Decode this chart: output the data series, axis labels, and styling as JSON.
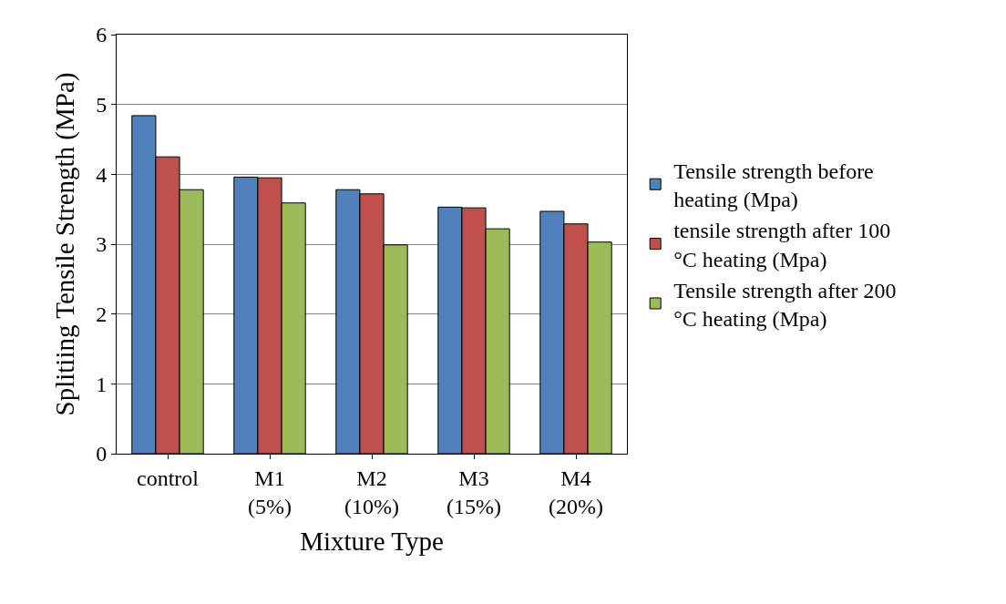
{
  "chart_data": {
    "type": "bar",
    "xlabel": "Mixture Type",
    "ylabel": "Splitiing Tensile Strength (MPa)",
    "categories": [
      "control",
      "M1\n(5%)",
      "M2\n(10%)",
      "M3\n(15%)",
      "M4\n(20%)"
    ],
    "series": [
      {
        "name": "Tensile strength before heating (Mpa)",
        "color": "#4f81bd",
        "values": [
          4.84,
          3.96,
          3.78,
          3.53,
          3.47
        ]
      },
      {
        "name": "tensile strength after 100 °C heating (Mpa)",
        "color": "#c0504d",
        "values": [
          4.25,
          3.95,
          3.72,
          3.52,
          3.29
        ]
      },
      {
        "name": "Tensile strength after 200 °C heating (Mpa)",
        "color": "#9bbb59",
        "values": [
          3.78,
          3.59,
          2.99,
          3.22,
          3.03
        ]
      }
    ],
    "ylim": [
      0,
      6
    ],
    "yticks": [
      0,
      1,
      2,
      3,
      4,
      5,
      6
    ],
    "grid": "y",
    "legend": "right"
  }
}
